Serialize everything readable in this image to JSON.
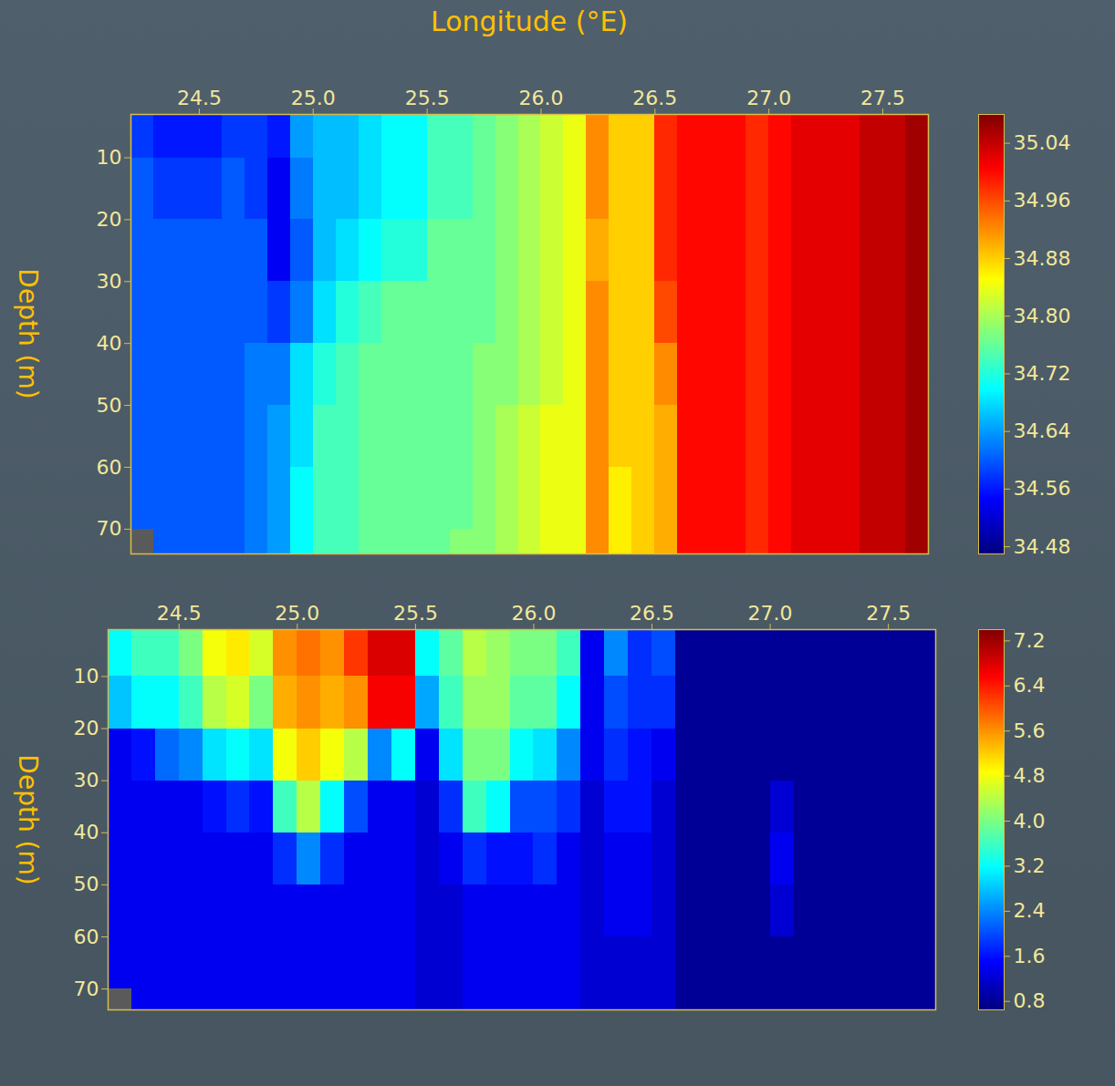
{
  "chart_data": [
    {
      "type": "heatmap",
      "x_label": "Longitude (°E)",
      "y_label": "Depth (m)",
      "xlim": [
        24.2,
        27.7
      ],
      "ylim": [
        3,
        74
      ],
      "xticks": [
        24.5,
        {
          "value": 25,
          "label": "25.0"
        },
        25.5,
        {
          "value": 26,
          "label": "26.0"
        },
        26.5,
        {
          "value": 27,
          "label": "27.0"
        },
        27.5
      ],
      "yticks": [
        10,
        20,
        30,
        40,
        50,
        60,
        70
      ],
      "x_edges": [
        24.2,
        24.3,
        24.4,
        24.5,
        24.6,
        24.7,
        24.8,
        24.9,
        25.0,
        25.1,
        25.2,
        25.3,
        25.4,
        25.5,
        25.6,
        25.7,
        25.8,
        25.9,
        26.0,
        26.1,
        26.2,
        26.3,
        26.4,
        26.5,
        26.6,
        26.7,
        26.8,
        26.9,
        27.0,
        27.1,
        27.2,
        27.3,
        27.4,
        27.5,
        27.6,
        27.7
      ],
      "y_edges": [
        3,
        10,
        20,
        30,
        40,
        50,
        60,
        70,
        74
      ],
      "cells": [
        [
          34.58,
          34.6,
          34.6,
          34.6,
          34.6,
          34.6,
          34.6,
          null
        ],
        [
          34.56,
          34.58,
          34.6,
          34.6,
          34.6,
          34.6,
          34.6,
          34.6
        ],
        [
          34.56,
          34.58,
          34.6,
          34.6,
          34.6,
          34.6,
          34.6,
          34.6
        ],
        [
          34.56,
          34.58,
          34.6,
          34.6,
          34.6,
          34.6,
          34.6,
          34.6
        ],
        [
          34.58,
          34.6,
          34.6,
          34.6,
          34.6,
          34.6,
          34.6,
          34.6
        ],
        [
          34.58,
          34.58,
          34.6,
          34.6,
          34.62,
          34.62,
          34.62,
          34.62
        ],
        [
          34.56,
          34.54,
          34.54,
          34.58,
          34.62,
          34.64,
          34.64,
          34.64
        ],
        [
          34.64,
          34.62,
          34.6,
          34.62,
          34.68,
          34.68,
          34.7,
          34.7
        ],
        [
          34.66,
          34.66,
          34.66,
          34.68,
          34.72,
          34.74,
          34.74,
          34.74
        ],
        [
          34.66,
          34.66,
          34.68,
          34.72,
          34.74,
          34.74,
          34.74,
          34.74
        ],
        [
          34.68,
          34.68,
          34.7,
          34.74,
          34.76,
          34.76,
          34.76,
          34.76
        ],
        [
          34.7,
          34.7,
          34.72,
          34.76,
          34.76,
          34.76,
          34.76,
          34.76
        ],
        [
          34.7,
          34.7,
          34.72,
          34.76,
          34.76,
          34.76,
          34.76,
          34.76
        ],
        [
          34.74,
          34.74,
          34.76,
          34.76,
          34.76,
          34.76,
          34.76,
          34.76
        ],
        [
          34.74,
          34.74,
          34.76,
          34.76,
          34.76,
          34.76,
          34.76,
          34.78
        ],
        [
          34.76,
          34.76,
          34.76,
          34.76,
          34.78,
          34.78,
          34.78,
          34.78
        ],
        [
          34.78,
          34.78,
          34.78,
          34.78,
          34.78,
          34.8,
          34.8,
          34.8
        ],
        [
          34.8,
          34.8,
          34.8,
          34.8,
          34.8,
          34.82,
          34.82,
          34.82
        ],
        [
          34.82,
          34.82,
          34.82,
          34.82,
          34.82,
          34.84,
          34.84,
          34.84
        ],
        [
          34.84,
          34.84,
          34.84,
          34.84,
          34.84,
          34.84,
          34.84,
          34.84
        ],
        [
          34.92,
          34.92,
          34.9,
          34.92,
          34.92,
          34.92,
          34.92,
          34.92
        ],
        [
          34.88,
          34.88,
          34.88,
          34.88,
          34.88,
          34.88,
          34.86,
          34.86
        ],
        [
          34.88,
          34.88,
          34.88,
          34.88,
          34.88,
          34.88,
          34.88,
          34.88
        ],
        [
          34.98,
          34.98,
          34.98,
          34.96,
          34.92,
          34.9,
          34.9,
          34.9
        ],
        [
          35,
          35,
          35,
          35,
          35,
          35,
          35,
          35
        ],
        [
          35,
          35,
          35,
          35,
          35,
          35,
          35,
          35
        ],
        [
          35,
          35,
          35,
          35,
          35,
          35,
          35,
          35
        ],
        [
          34.98,
          34.98,
          34.98,
          34.98,
          34.98,
          34.98,
          34.98,
          34.98
        ],
        [
          35,
          35,
          35,
          35,
          35,
          35,
          35,
          35
        ],
        [
          35.02,
          35.02,
          35.02,
          35.02,
          35.02,
          35.02,
          35.02,
          35.02
        ],
        [
          35.02,
          35.02,
          35.02,
          35.02,
          35.02,
          35.02,
          35.02,
          35.02
        ],
        [
          35.02,
          35.02,
          35.02,
          35.02,
          35.02,
          35.02,
          35.02,
          35.02
        ],
        [
          35.04,
          35.04,
          35.04,
          35.04,
          35.04,
          35.04,
          35.04,
          35.04
        ],
        [
          35.04,
          35.04,
          35.04,
          35.04,
          35.04,
          35.04,
          35.04,
          35.04
        ],
        [
          35.06,
          35.06,
          35.06,
          35.06,
          35.06,
          35.06,
          35.06,
          35.06
        ]
      ],
      "colorbar": {
        "range": [
          34.47,
          35.08
        ],
        "ticks": [
          34.48,
          34.56,
          34.64,
          34.72,
          {
            "value": 34.8,
            "label": "34.80"
          },
          34.88,
          34.96,
          35.04
        ]
      }
    },
    {
      "type": "heatmap",
      "y_label": "Depth (m)",
      "xlim": [
        24.2,
        27.7
      ],
      "ylim": [
        1,
        74
      ],
      "xticks": [
        24.5,
        {
          "value": 25,
          "label": "25.0"
        },
        25.5,
        {
          "value": 26,
          "label": "26.0"
        },
        26.5,
        {
          "value": 27,
          "label": "27.0"
        },
        27.5
      ],
      "yticks": [
        10,
        20,
        30,
        40,
        50,
        60,
        70
      ],
      "x_edges": [
        24.2,
        24.3,
        24.4,
        24.5,
        24.6,
        24.7,
        24.8,
        24.9,
        25.0,
        25.1,
        25.2,
        25.3,
        25.4,
        25.5,
        25.6,
        25.7,
        25.8,
        25.9,
        26.0,
        26.1,
        26.2,
        26.3,
        26.4,
        26.5,
        26.6,
        26.7,
        26.8,
        26.9,
        27.0,
        27.1,
        27.2,
        27.3,
        27.4,
        27.5,
        27.6,
        27.7
      ],
      "y_edges": [
        1,
        10,
        20,
        30,
        40,
        50,
        60,
        70,
        74
      ],
      "cells": [
        [
          3.2,
          2.8,
          1.4,
          1.4,
          1.4,
          1.4,
          1.4,
          null
        ],
        [
          3.6,
          3.2,
          1.6,
          1.4,
          1.4,
          1.4,
          1.4,
          1.4
        ],
        [
          3.6,
          3.2,
          2.2,
          1.4,
          1.4,
          1.4,
          1.4,
          1.4
        ],
        [
          4,
          3.6,
          2.4,
          1.4,
          1.4,
          1.4,
          1.4,
          1.4
        ],
        [
          4.8,
          4.4,
          3,
          1.6,
          1.4,
          1.4,
          1.4,
          1.4
        ],
        [
          5,
          4.6,
          3.2,
          1.8,
          1.4,
          1.4,
          1.4,
          1.4
        ],
        [
          4.6,
          4,
          3,
          1.6,
          1.4,
          1.4,
          1.4,
          1.4
        ],
        [
          5.6,
          5.4,
          4.8,
          3.6,
          1.8,
          1.4,
          1.4,
          1.4
        ],
        [
          5.8,
          5.6,
          5.2,
          4.4,
          2.4,
          1.4,
          1.4,
          1.4
        ],
        [
          5.6,
          5.4,
          4.8,
          3.2,
          1.8,
          1.4,
          1.4,
          1.4
        ],
        [
          6.2,
          5.6,
          4.4,
          2,
          1.4,
          1.4,
          1.4,
          1.4
        ],
        [
          6.8,
          6.6,
          2.4,
          1.4,
          1.4,
          1.4,
          1.4,
          1.4
        ],
        [
          6.8,
          6.6,
          3.2,
          1.4,
          1.4,
          1.4,
          1.4,
          1.4
        ],
        [
          3.2,
          2.6,
          1.4,
          1.2,
          1.2,
          1.2,
          1.2,
          1.2
        ],
        [
          3.8,
          3.6,
          3,
          1.8,
          1.4,
          1.2,
          1.2,
          1.2
        ],
        [
          4.4,
          4.2,
          4,
          3.6,
          1.8,
          1.4,
          1.4,
          1.4
        ],
        [
          4.2,
          4.2,
          4,
          3.2,
          1.6,
          1.4,
          1.4,
          1.4
        ],
        [
          4,
          3.8,
          3.2,
          2,
          1.6,
          1.4,
          1.4,
          1.4
        ],
        [
          4,
          3.8,
          3,
          2,
          1.8,
          1.4,
          1.4,
          1.4
        ],
        [
          3.6,
          3.2,
          2.4,
          1.8,
          1.4,
          1.4,
          1.4,
          1.4
        ],
        [
          1.4,
          1.4,
          1.4,
          1.2,
          1.2,
          1.2,
          1.2,
          1.2
        ],
        [
          2.4,
          2,
          1.8,
          1.6,
          1.4,
          1.4,
          1.2,
          1.2
        ],
        [
          1.8,
          1.8,
          1.6,
          1.6,
          1.4,
          1.4,
          1.2,
          1.2
        ],
        [
          2,
          1.8,
          1.4,
          1.2,
          1.2,
          1.2,
          1.2,
          1.2
        ],
        [
          0.8,
          0.8,
          0.8,
          0.8,
          0.8,
          0.8,
          0.8,
          0.8
        ],
        [
          0.8,
          0.8,
          0.8,
          0.8,
          0.8,
          0.8,
          0.8,
          0.8
        ],
        [
          0.8,
          0.8,
          0.8,
          0.8,
          0.8,
          0.8,
          0.8,
          0.8
        ],
        [
          0.8,
          0.8,
          0.8,
          0.8,
          0.8,
          0.8,
          0.8,
          0.8
        ],
        [
          0.8,
          0.8,
          0.8,
          1.2,
          1.4,
          1.2,
          0.8,
          0.8
        ],
        [
          0.8,
          0.8,
          0.8,
          0.8,
          0.8,
          0.8,
          0.8,
          0.8
        ],
        [
          0.8,
          0.8,
          0.8,
          0.8,
          0.8,
          0.8,
          0.8,
          0.8
        ],
        [
          0.8,
          0.8,
          0.8,
          0.8,
          0.8,
          0.8,
          0.8,
          0.8
        ],
        [
          0.8,
          0.8,
          0.8,
          0.8,
          0.8,
          0.8,
          0.8,
          0.8
        ],
        [
          0.8,
          0.8,
          0.8,
          0.8,
          0.8,
          0.8,
          0.8,
          0.8
        ],
        [
          0.8,
          0.8,
          0.8,
          0.8,
          0.8,
          0.8,
          0.8,
          0.8
        ]
      ],
      "colorbar": {
        "range": [
          0.65,
          7.4
        ],
        "ticks": [
          0.8,
          1.6,
          2.4,
          3.2,
          {
            "value": 4,
            "label": "4.0"
          },
          4.8,
          5.6,
          6.4,
          7.2
        ]
      }
    }
  ]
}
